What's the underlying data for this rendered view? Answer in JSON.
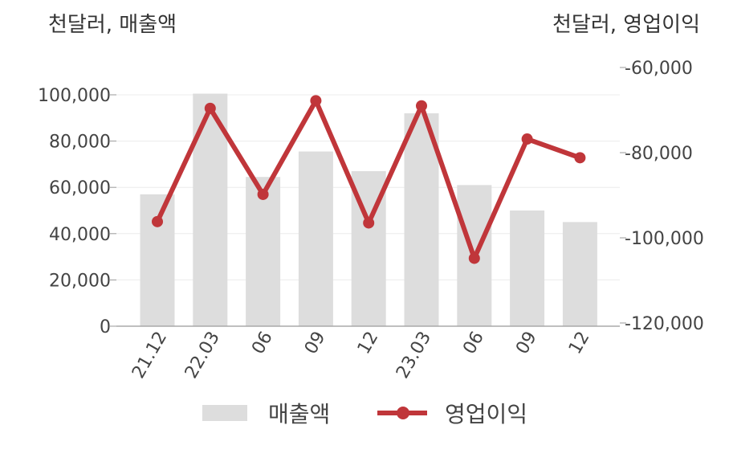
{
  "chart_data": {
    "type": "bar",
    "categories": [
      "21.12",
      "22.03",
      "06",
      "09",
      "12",
      "23.03",
      "06",
      "09",
      "12"
    ],
    "left_axis_unit": "천달러, 매출액",
    "right_axis_unit": "천달러, 영업이익",
    "left_ticks": [
      "0",
      "20,000",
      "40,000",
      "60,000",
      "80,000",
      "100,000"
    ],
    "right_ticks": [
      "-60,000",
      "-80,000",
      "-100,000",
      "-120,000"
    ],
    "y_left_lim": [
      0,
      100000
    ],
    "y_right_lim": [
      -120000,
      -60000
    ],
    "grid": true,
    "legend_position": "bottom",
    "series": [
      {
        "name": "매출액",
        "type": "bar",
        "axis": "left",
        "color": "#dddddd",
        "values": [
          57000,
          100500,
          64500,
          75500,
          67000,
          92000,
          61000,
          50000,
          45000
        ]
      },
      {
        "name": "영업이익",
        "type": "line",
        "axis": "right",
        "color": "#c0363a",
        "values": [
          -96200,
          -69600,
          -89800,
          -67800,
          -96500,
          -69000,
          -104800,
          -76800,
          -81200
        ]
      }
    ]
  }
}
